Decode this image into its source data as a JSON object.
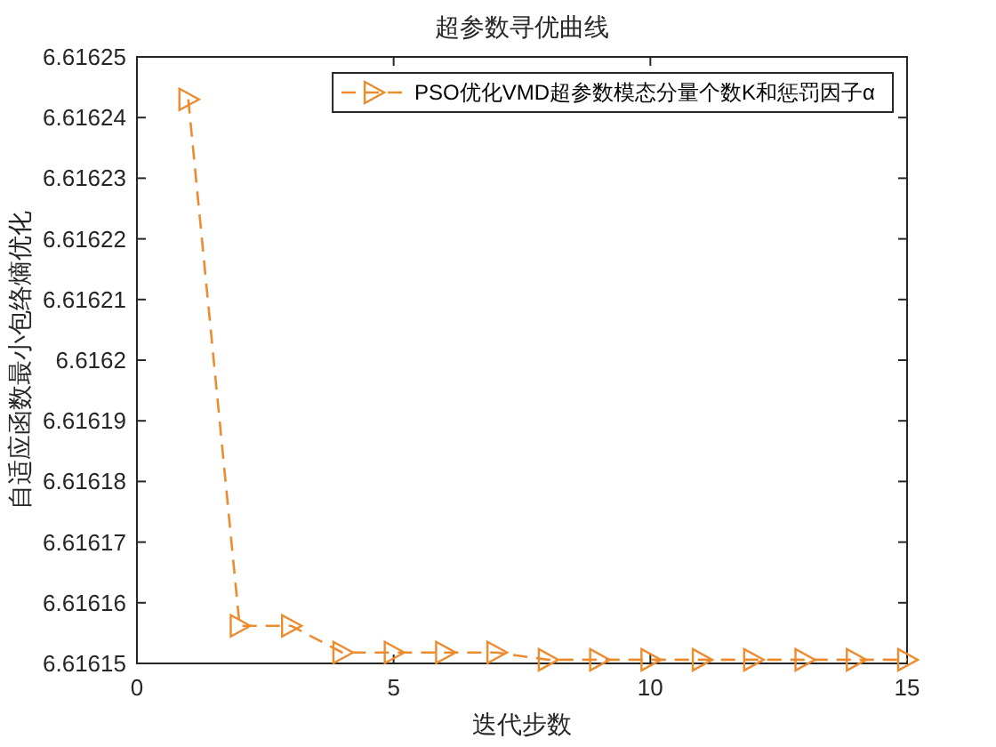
{
  "chart_data": {
    "type": "line",
    "title": "超参数寻优曲线",
    "xlabel": "迭代步数",
    "ylabel": "自适应函数最小包络熵优化",
    "x": [
      1,
      2,
      3,
      4,
      5,
      6,
      7,
      8,
      9,
      10,
      11,
      12,
      13,
      14,
      15
    ],
    "series": [
      {
        "name": "PSO优化VMD超参数模态分量个数K和惩罚因子α",
        "color": "#ed8b2f",
        "values": [
          6.616243,
          6.6161562,
          6.6161562,
          6.6161518,
          6.6161518,
          6.6161518,
          6.6161518,
          6.6161506,
          6.6161506,
          6.6161506,
          6.6161506,
          6.6161506,
          6.6161506,
          6.6161506,
          6.6161506
        ]
      }
    ],
    "xlim": [
      0,
      15
    ],
    "xticks": [
      0,
      5,
      10,
      15
    ],
    "ylim": [
      6.61615,
      6.61625
    ],
    "yticks": [
      6.61615,
      6.61616,
      6.61617,
      6.61618,
      6.61619,
      6.6162,
      6.61621,
      6.61622,
      6.61623,
      6.61624,
      6.61625
    ],
    "legend": "top right",
    "marker": "triangle",
    "line_style": "dashed",
    "grid": false
  }
}
